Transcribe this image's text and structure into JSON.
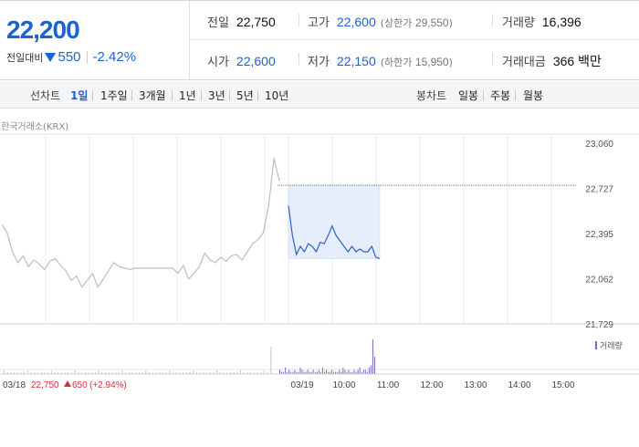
{
  "quote": {
    "current_price": "22,200",
    "change_label": "전일대비",
    "change_value": "550",
    "change_percent": "-2.42%"
  },
  "stats": {
    "prev_close": {
      "label": "전일",
      "value": "22,750"
    },
    "high": {
      "label": "고가",
      "value": "22,600",
      "sub_label": "(상한가",
      "sub_value": "29,550",
      "sub_close": ")"
    },
    "volume": {
      "label": "거래량",
      "value": "16,396"
    },
    "open": {
      "label": "시가",
      "value": "22,600"
    },
    "low": {
      "label": "저가",
      "value": "22,150",
      "sub_label": "(하한가",
      "sub_value": "15,950",
      "sub_close": ")"
    },
    "trade_value": {
      "label": "거래대금",
      "value": "366 백만"
    }
  },
  "toolbar": {
    "line_chart_label": "선차트",
    "ranges": [
      "1일",
      "1주일",
      "3개월",
      "1년",
      "3년",
      "5년",
      "10년"
    ],
    "active_range": "1일",
    "candle_label": "봉차트",
    "candles": [
      "일봉",
      "주봉",
      "월봉"
    ]
  },
  "chart": {
    "source": "한국거래소(KRX)",
    "volume_legend": "거래량",
    "prev_info": {
      "date": "03/18",
      "price": "22,750",
      "change": "650",
      "percent": "(+2.94%)"
    },
    "colors": {
      "today_line": "#2f5fc9",
      "prev_line": "#bdbdbd",
      "fill": "#e7eefb",
      "volume": "#7c6bc4",
      "up": "#d6303a",
      "down": "#1b63d4"
    }
  },
  "chart_data": {
    "type": "line",
    "y_ticks": [
      "23,060",
      "22,727",
      "22,395",
      "22,062",
      "21,729"
    ],
    "ylim": [
      21729,
      23060
    ],
    "x_ticks": [
      "03/19",
      "10:00",
      "11:00",
      "12:00",
      "13:00",
      "14:00",
      "15:00"
    ],
    "reference_price": 22750,
    "series": [
      {
        "values": [
          22460,
          22400,
          22260,
          22180,
          22230,
          22150,
          22200,
          22170,
          22130,
          22190,
          22210,
          22160,
          22120,
          22050,
          22080,
          22000,
          22050,
          22100,
          22000,
          22060,
          22120,
          22180,
          22150,
          22140,
          22130,
          22140,
          22140,
          22140,
          22140,
          22140,
          22140,
          22140,
          22140,
          22100,
          22160,
          22060,
          22100,
          22150,
          22250,
          22200,
          22180,
          22220,
          22190,
          22230,
          22240,
          22200,
          22260,
          22320,
          22350,
          22400,
          22600,
          22950,
          22780
        ]
      },
      {
        "values": [
          22600,
          22380,
          22240,
          22300,
          22260,
          22320,
          22300,
          22260,
          22330,
          22320,
          22380,
          22450,
          22380,
          22340,
          22300,
          22260,
          22300,
          22260,
          22280,
          22260,
          22260,
          22300,
          22220,
          22210
        ]
      }
    ],
    "volume": [
      2,
      1,
      1,
      3,
      1,
      2,
      1,
      1,
      2,
      1,
      1,
      3,
      2,
      1,
      1,
      2,
      1,
      1,
      2,
      1,
      1,
      2,
      1,
      3,
      1,
      2,
      1,
      1,
      2,
      1,
      1,
      1,
      2,
      1,
      3,
      2,
      1,
      2,
      1,
      1,
      2,
      1,
      2,
      3,
      1,
      2,
      2,
      1,
      3,
      4,
      16,
      8
    ]
  }
}
